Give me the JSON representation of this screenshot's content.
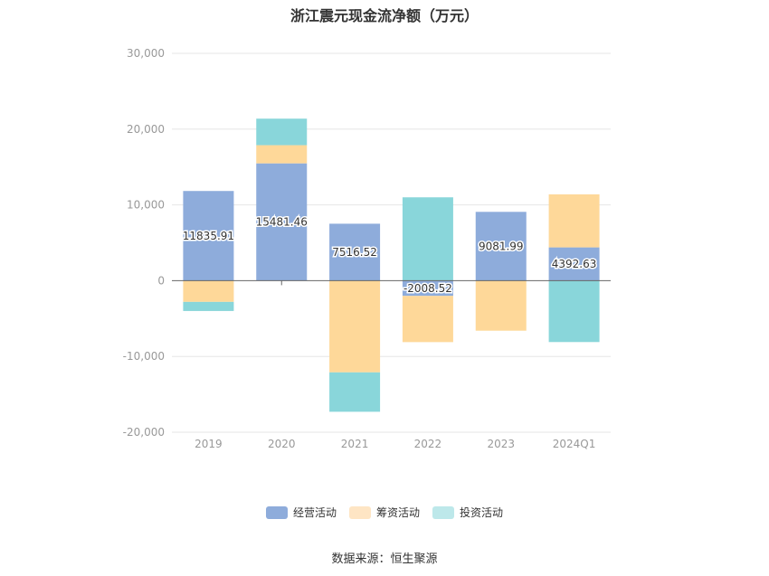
{
  "chart_data": {
    "type": "bar",
    "stacked": true,
    "title": "浙江震元现金流净额（万元）",
    "categories": [
      "2019",
      "2020",
      "2021",
      "2022",
      "2023",
      "2024Q1"
    ],
    "series": [
      {
        "name": "经营活动",
        "color": "#8eacdb",
        "values": [
          11835.91,
          15481.46,
          7516.52,
          -2008.52,
          9081.99,
          4392.63
        ]
      },
      {
        "name": "筹资活动",
        "color": "#fed899",
        "values": [
          -2800,
          2400,
          -12100,
          -6100,
          -6600,
          7000
        ]
      },
      {
        "name": "投资活动",
        "color": "#89d6da",
        "values": [
          -1200,
          3500,
          -5200,
          11000,
          0,
          -8100
        ]
      }
    ],
    "data_labels": [
      "11835.91",
      "15481.46",
      "7516.52",
      "-2008.52",
      "9081.99",
      "4392.63"
    ],
    "y_ticks": [
      "30,000",
      "20,000",
      "10,000",
      "0",
      "-10,000",
      "-20,000"
    ],
    "ylim": [
      -20000,
      30000
    ],
    "grid": true,
    "legend_position": "bottom-center",
    "legend_colors": [
      "#8eacdb",
      "#fee5c4",
      "#bde8ea"
    ],
    "source": "数据来源：恒生聚源"
  }
}
